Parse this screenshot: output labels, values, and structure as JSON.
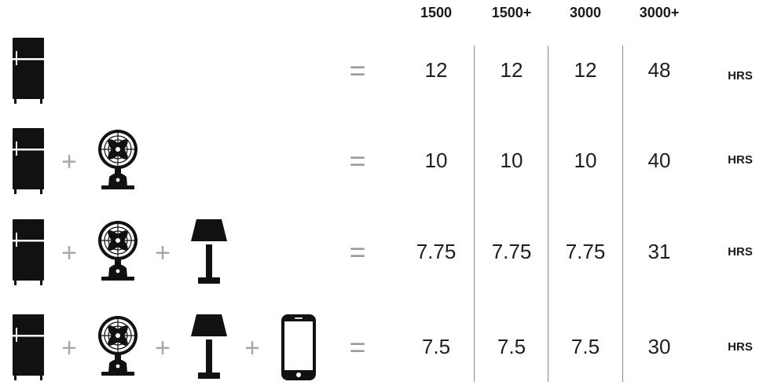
{
  "columns": [
    "1500",
    "1500+",
    "3000",
    "3000+"
  ],
  "unit": "HRS",
  "plus_symbol": "+",
  "equals_symbol": "=",
  "icons": {
    "fridge": "fridge-icon",
    "fan": "fan-icon",
    "lamp": "lamp-icon",
    "phone": "phone-icon"
  },
  "rows": [
    {
      "appliances": [
        "fridge"
      ],
      "values": [
        "12",
        "12",
        "12",
        "48"
      ]
    },
    {
      "appliances": [
        "fridge",
        "fan"
      ],
      "values": [
        "10",
        "10",
        "10",
        "40"
      ]
    },
    {
      "appliances": [
        "fridge",
        "fan",
        "lamp"
      ],
      "values": [
        "7.75",
        "7.75",
        "7.75",
        "31"
      ]
    },
    {
      "appliances": [
        "fridge",
        "fan",
        "lamp",
        "phone"
      ],
      "values": [
        "7.5",
        "7.5",
        "7.5",
        "30"
      ]
    }
  ]
}
